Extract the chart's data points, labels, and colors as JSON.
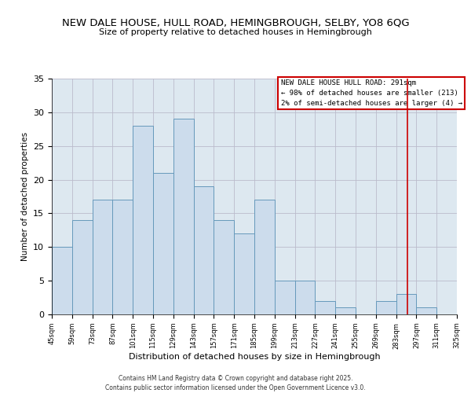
{
  "title": "NEW DALE HOUSE, HULL ROAD, HEMINGBROUGH, SELBY, YO8 6QG",
  "subtitle": "Size of property relative to detached houses in Hemingbrough",
  "xlabel": "Distribution of detached houses by size in Hemingbrough",
  "ylabel": "Number of detached properties",
  "bar_edges": [
    45,
    59,
    73,
    87,
    101,
    115,
    129,
    143,
    157,
    171,
    185,
    199,
    213,
    227,
    241,
    255,
    269,
    283,
    297,
    311,
    325
  ],
  "bar_heights": [
    10,
    14,
    17,
    17,
    28,
    21,
    29,
    19,
    14,
    12,
    17,
    5,
    5,
    2,
    1,
    0,
    2,
    3,
    1,
    0
  ],
  "bar_color": "#ccdcec",
  "bar_edge_color": "#6699bb",
  "grid_color": "#bbbbcc",
  "vline_x": 291,
  "vline_color": "#cc0000",
  "legend_title": "NEW DALE HOUSE HULL ROAD: 291sqm",
  "legend_line1": "← 98% of detached houses are smaller (213)",
  "legend_line2": "2% of semi-detached houses are larger (4) →",
  "legend_box_color": "#cc0000",
  "footnote1": "Contains HM Land Registry data © Crown copyright and database right 2025.",
  "footnote2": "Contains public sector information licensed under the Open Government Licence v3.0.",
  "ylim": [
    0,
    35
  ],
  "yticks": [
    0,
    5,
    10,
    15,
    20,
    25,
    30,
    35
  ],
  "tick_labels": [
    "45sqm",
    "59sqm",
    "73sqm",
    "87sqm",
    "101sqm",
    "115sqm",
    "129sqm",
    "143sqm",
    "157sqm",
    "171sqm",
    "185sqm",
    "199sqm",
    "213sqm",
    "227sqm",
    "241sqm",
    "255sqm",
    "269sqm",
    "283sqm",
    "297sqm",
    "311sqm",
    "325sqm"
  ],
  "bg_color": "#ffffff",
  "plot_bg_color": "#dde8f0"
}
